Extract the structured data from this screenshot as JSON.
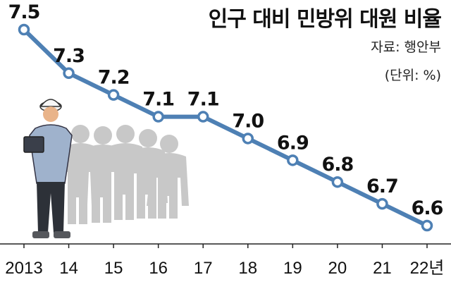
{
  "title": "인구 대비 민방위 대원 비율",
  "source": "자료: 행안부",
  "unit": "(단위: %)",
  "chart_data": {
    "type": "line",
    "title": "인구 대비 민방위 대원 비율",
    "categories": [
      "2013",
      "14",
      "15",
      "16",
      "17",
      "18",
      "19",
      "20",
      "21",
      "22년"
    ],
    "values": [
      7.5,
      7.3,
      7.2,
      7.1,
      7.1,
      7.0,
      6.9,
      6.8,
      6.7,
      6.6
    ],
    "ylim": [
      6.6,
      7.5
    ],
    "grid": false,
    "legend": "none",
    "line_color": "#4e80b4",
    "marker_fill": "#ffffff",
    "axis_color": "#222222"
  }
}
